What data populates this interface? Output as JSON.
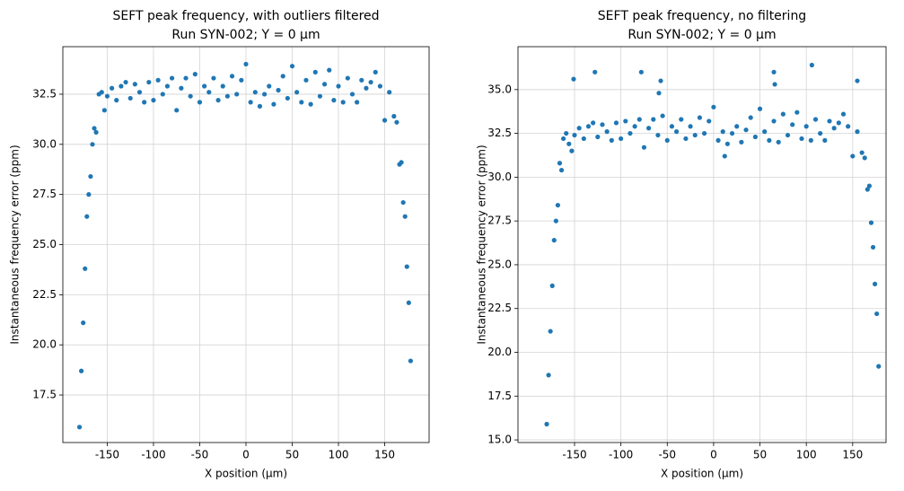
{
  "chart_data": [
    {
      "type": "scatter",
      "title": "SEFT peak frequency, with outliers filtered",
      "subtitle": "Run SYN-002; Y = 0 μm",
      "x_label": "X position (μm)",
      "y_label": "Instantaneous frequency error (ppm)",
      "color": "#1f77b4",
      "grid": true,
      "xlim": [
        -198,
        198
      ],
      "ylim": [
        15.13,
        34.87
      ],
      "xticks": [
        -150,
        -100,
        -50,
        0,
        50,
        100,
        150
      ],
      "yticks": [
        17.5,
        {
          "value": 20,
          "label": "20.0"
        },
        22.5,
        {
          "value": 25,
          "label": "25.0"
        },
        27.5,
        {
          "value": 30,
          "label": "30.0"
        },
        32.5
      ],
      "x": [
        -180,
        -178,
        -176,
        -174,
        -172,
        -170,
        -168,
        -166,
        -164,
        -162,
        -159,
        -156,
        -153,
        -150,
        -145,
        -140,
        -135,
        -130,
        -125,
        -120,
        -115,
        -110,
        -105,
        -100,
        -95,
        -90,
        -85,
        -80,
        -75,
        -70,
        -65,
        -60,
        -55,
        -50,
        -45,
        -40,
        -35,
        -30,
        -25,
        -20,
        -15,
        -10,
        -5,
        0,
        5,
        10,
        15,
        20,
        25,
        30,
        35,
        40,
        45,
        50,
        55,
        60,
        65,
        70,
        75,
        80,
        85,
        90,
        95,
        100,
        105,
        110,
        115,
        120,
        125,
        130,
        135,
        140,
        145,
        150,
        155,
        160,
        163,
        166,
        168,
        170,
        172,
        174,
        176,
        178
      ],
      "values": [
        15.9,
        18.7,
        21.1,
        23.8,
        26.4,
        27.5,
        28.4,
        30.0,
        30.8,
        30.6,
        32.5,
        32.6,
        31.7,
        32.4,
        32.8,
        32.2,
        32.9,
        33.1,
        32.3,
        33.0,
        32.6,
        32.1,
        33.1,
        32.2,
        33.2,
        32.5,
        32.9,
        33.3,
        31.7,
        32.8,
        33.3,
        32.4,
        33.5,
        32.1,
        32.9,
        32.6,
        33.3,
        32.2,
        32.9,
        32.4,
        33.4,
        32.5,
        33.2,
        34.0,
        32.1,
        32.6,
        31.9,
        32.5,
        32.9,
        32.0,
        32.7,
        33.4,
        32.3,
        33.9,
        32.6,
        32.1,
        33.2,
        32.0,
        33.6,
        32.4,
        33.0,
        33.7,
        32.2,
        32.9,
        32.1,
        33.3,
        32.5,
        32.1,
        33.2,
        32.8,
        33.1,
        33.6,
        32.9,
        31.2,
        32.6,
        31.4,
        31.1,
        29.0,
        29.1,
        27.1,
        26.4,
        23.9,
        22.1,
        19.2
      ]
    },
    {
      "type": "scatter",
      "title": "SEFT peak frequency, no filtering",
      "subtitle": "Run SYN-002; Y = 0 μm",
      "x_label": "X position (μm)",
      "y_label": "Instantaneous frequency error (ppm)",
      "color": "#1f77b4",
      "grid": true,
      "xlim": [
        -211,
        186
      ],
      "ylim": [
        14.85,
        37.45
      ],
      "xticks": [
        -150,
        -100,
        -50,
        0,
        50,
        100,
        150
      ],
      "yticks": [
        {
          "value": 15,
          "label": "15.0"
        },
        17.5,
        {
          "value": 20,
          "label": "20.0"
        },
        22.5,
        {
          "value": 25,
          "label": "25.0"
        },
        27.5,
        {
          "value": 30,
          "label": "30.0"
        },
        32.5,
        {
          "value": 35,
          "label": "35.0"
        }
      ],
      "x": [
        -180,
        -178,
        -176,
        -174,
        -172,
        -170,
        -168,
        -166,
        -164,
        -162,
        -159,
        -156,
        -153,
        -150,
        -145,
        -140,
        -135,
        -130,
        -125,
        -120,
        -115,
        -110,
        -105,
        -100,
        -95,
        -90,
        -85,
        -80,
        -75,
        -70,
        -65,
        -60,
        -55,
        -50,
        -45,
        -40,
        -35,
        -30,
        -25,
        -20,
        -15,
        -10,
        -5,
        0,
        5,
        10,
        15,
        20,
        25,
        30,
        35,
        40,
        45,
        50,
        55,
        60,
        65,
        70,
        75,
        80,
        85,
        90,
        95,
        100,
        105,
        110,
        115,
        120,
        125,
        130,
        135,
        140,
        145,
        150,
        155,
        160,
        163,
        166,
        168,
        170,
        172,
        174,
        176,
        178,
        -151,
        -128,
        -78,
        -59,
        -57,
        65,
        66,
        106,
        155,
        12
      ],
      "values": [
        15.9,
        18.7,
        21.2,
        23.8,
        26.4,
        27.5,
        28.4,
        30.8,
        30.4,
        32.2,
        32.5,
        31.9,
        31.5,
        32.4,
        32.8,
        32.2,
        32.9,
        33.1,
        32.3,
        33.0,
        32.6,
        32.1,
        33.1,
        32.2,
        33.2,
        32.5,
        32.9,
        33.3,
        31.7,
        32.8,
        33.3,
        32.4,
        33.5,
        32.1,
        32.9,
        32.6,
        33.3,
        32.2,
        32.9,
        32.4,
        33.4,
        32.5,
        33.2,
        34.0,
        32.1,
        32.6,
        31.9,
        32.5,
        32.9,
        32.0,
        32.7,
        33.4,
        32.3,
        33.9,
        32.6,
        32.1,
        33.2,
        32.0,
        33.6,
        32.4,
        33.0,
        33.7,
        32.2,
        32.9,
        32.1,
        33.3,
        32.5,
        32.1,
        33.2,
        32.8,
        33.1,
        33.6,
        32.9,
        31.2,
        32.6,
        31.4,
        31.1,
        29.3,
        29.5,
        27.4,
        26.0,
        23.9,
        22.2,
        19.2,
        35.6,
        36.0,
        36.0,
        34.8,
        35.5,
        36.0,
        35.3,
        36.4,
        35.5,
        31.2
      ]
    }
  ]
}
